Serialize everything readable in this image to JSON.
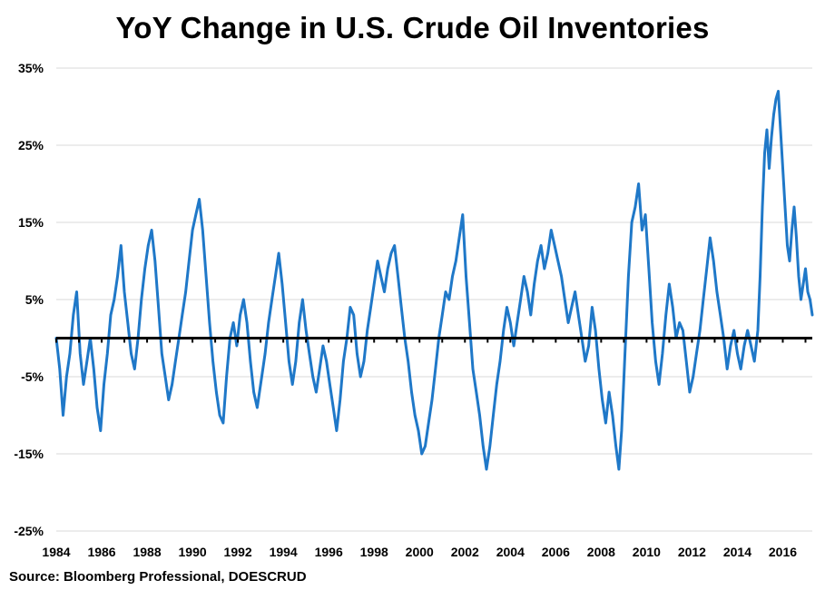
{
  "title": "YoY Change in U.S. Crude Oil Inventories",
  "source": "Source: Bloomberg Professional, DOESCRUD",
  "colors": {
    "series": "#1f78c8",
    "zero_line": "#000000",
    "grid": "#d9d9d9"
  },
  "chart_data": {
    "type": "line",
    "title": "YoY Change in U.S. Crude Oil Inventories",
    "xlabel": "",
    "ylabel": "",
    "xlim": [
      1984,
      2017.3
    ],
    "ylim": [
      -25,
      35
    ],
    "y_ticks": [
      35,
      25,
      15,
      5,
      -5,
      -15,
      -25
    ],
    "y_tick_labels": [
      "35%",
      "25%",
      "15%",
      "5%",
      "-5%",
      "-15%",
      "-25%"
    ],
    "x_ticks": [
      1984,
      1986,
      1988,
      1990,
      1992,
      1994,
      1996,
      1998,
      2000,
      2002,
      2004,
      2006,
      2008,
      2010,
      2012,
      2014,
      2016
    ],
    "x_tick_labels": [
      "1984",
      "1986",
      "1988",
      "1990",
      "1992",
      "1994",
      "1996",
      "1998",
      "2000",
      "2002",
      "2004",
      "2006",
      "2008",
      "2010",
      "2012",
      "2014",
      "2016"
    ],
    "grid": "horizontal",
    "zero_line": 0,
    "series": [
      {
        "name": "",
        "points": [
          [
            1984.0,
            0
          ],
          [
            1984.15,
            -4
          ],
          [
            1984.3,
            -10
          ],
          [
            1984.45,
            -5
          ],
          [
            1984.6,
            -2
          ],
          [
            1984.75,
            3
          ],
          [
            1984.9,
            6
          ],
          [
            1985.05,
            -2
          ],
          [
            1985.2,
            -6
          ],
          [
            1985.35,
            -3
          ],
          [
            1985.5,
            0
          ],
          [
            1985.65,
            -4
          ],
          [
            1985.8,
            -9
          ],
          [
            1985.95,
            -12
          ],
          [
            1986.1,
            -6
          ],
          [
            1986.25,
            -2
          ],
          [
            1986.4,
            3
          ],
          [
            1986.55,
            5
          ],
          [
            1986.7,
            8
          ],
          [
            1986.85,
            12
          ],
          [
            1987.0,
            6
          ],
          [
            1987.15,
            2
          ],
          [
            1987.3,
            -2
          ],
          [
            1987.45,
            -4
          ],
          [
            1987.6,
            0
          ],
          [
            1987.75,
            5
          ],
          [
            1987.9,
            9
          ],
          [
            1988.05,
            12
          ],
          [
            1988.2,
            14
          ],
          [
            1988.35,
            10
          ],
          [
            1988.5,
            4
          ],
          [
            1988.65,
            -2
          ],
          [
            1988.8,
            -5
          ],
          [
            1988.95,
            -8
          ],
          [
            1989.1,
            -6
          ],
          [
            1989.25,
            -3
          ],
          [
            1989.4,
            0
          ],
          [
            1989.55,
            3
          ],
          [
            1989.7,
            6
          ],
          [
            1989.85,
            10
          ],
          [
            1990.0,
            14
          ],
          [
            1990.15,
            16
          ],
          [
            1990.3,
            18
          ],
          [
            1990.45,
            14
          ],
          [
            1990.6,
            8
          ],
          [
            1990.75,
            2
          ],
          [
            1990.9,
            -3
          ],
          [
            1991.05,
            -7
          ],
          [
            1991.2,
            -10
          ],
          [
            1991.35,
            -11
          ],
          [
            1991.5,
            -5
          ],
          [
            1991.65,
            0
          ],
          [
            1991.8,
            2
          ],
          [
            1991.95,
            -1
          ],
          [
            1992.1,
            3
          ],
          [
            1992.25,
            5
          ],
          [
            1992.4,
            2
          ],
          [
            1992.55,
            -3
          ],
          [
            1992.7,
            -7
          ],
          [
            1992.85,
            -9
          ],
          [
            1993.05,
            -5
          ],
          [
            1993.2,
            -2
          ],
          [
            1993.35,
            2
          ],
          [
            1993.5,
            5
          ],
          [
            1993.65,
            8
          ],
          [
            1993.8,
            11
          ],
          [
            1993.95,
            7
          ],
          [
            1994.1,
            2
          ],
          [
            1994.25,
            -3
          ],
          [
            1994.4,
            -6
          ],
          [
            1994.55,
            -3
          ],
          [
            1994.7,
            2
          ],
          [
            1994.85,
            5
          ],
          [
            1995.0,
            1
          ],
          [
            1995.15,
            -2
          ],
          [
            1995.3,
            -5
          ],
          [
            1995.45,
            -7
          ],
          [
            1995.6,
            -4
          ],
          [
            1995.75,
            -1
          ],
          [
            1995.9,
            -3
          ],
          [
            1996.05,
            -6
          ],
          [
            1996.2,
            -9
          ],
          [
            1996.35,
            -12
          ],
          [
            1996.5,
            -8
          ],
          [
            1996.65,
            -3
          ],
          [
            1996.8,
            0
          ],
          [
            1996.95,
            4
          ],
          [
            1997.1,
            3
          ],
          [
            1997.25,
            -2
          ],
          [
            1997.4,
            -5
          ],
          [
            1997.55,
            -3
          ],
          [
            1997.7,
            1
          ],
          [
            1997.85,
            4
          ],
          [
            1998.0,
            7
          ],
          [
            1998.15,
            10
          ],
          [
            1998.3,
            8
          ],
          [
            1998.45,
            6
          ],
          [
            1998.6,
            9
          ],
          [
            1998.75,
            11
          ],
          [
            1998.9,
            12
          ],
          [
            1999.05,
            8
          ],
          [
            1999.2,
            4
          ],
          [
            1999.35,
            0
          ],
          [
            1999.5,
            -3
          ],
          [
            1999.65,
            -7
          ],
          [
            1999.8,
            -10
          ],
          [
            1999.95,
            -12
          ],
          [
            2000.1,
            -15
          ],
          [
            2000.25,
            -14
          ],
          [
            2000.4,
            -11
          ],
          [
            2000.55,
            -8
          ],
          [
            2000.7,
            -4
          ],
          [
            2000.85,
            0
          ],
          [
            2001.0,
            3
          ],
          [
            2001.15,
            6
          ],
          [
            2001.3,
            5
          ],
          [
            2001.45,
            8
          ],
          [
            2001.6,
            10
          ],
          [
            2001.75,
            13
          ],
          [
            2001.9,
            16
          ],
          [
            2002.05,
            8
          ],
          [
            2002.2,
            2
          ],
          [
            2002.35,
            -4
          ],
          [
            2002.5,
            -7
          ],
          [
            2002.65,
            -10
          ],
          [
            2002.8,
            -14
          ],
          [
            2002.95,
            -17
          ],
          [
            2003.1,
            -14
          ],
          [
            2003.25,
            -10
          ],
          [
            2003.4,
            -6
          ],
          [
            2003.55,
            -3
          ],
          [
            2003.7,
            1
          ],
          [
            2003.85,
            4
          ],
          [
            2004.0,
            2
          ],
          [
            2004.15,
            -1
          ],
          [
            2004.3,
            2
          ],
          [
            2004.45,
            5
          ],
          [
            2004.6,
            8
          ],
          [
            2004.75,
            6
          ],
          [
            2004.9,
            3
          ],
          [
            2005.05,
            7
          ],
          [
            2005.2,
            10
          ],
          [
            2005.35,
            12
          ],
          [
            2005.5,
            9
          ],
          [
            2005.65,
            11
          ],
          [
            2005.8,
            14
          ],
          [
            2005.95,
            12
          ],
          [
            2006.1,
            10
          ],
          [
            2006.25,
            8
          ],
          [
            2006.4,
            5
          ],
          [
            2006.55,
            2
          ],
          [
            2006.7,
            4
          ],
          [
            2006.85,
            6
          ],
          [
            2007.0,
            3
          ],
          [
            2007.15,
            0
          ],
          [
            2007.3,
            -3
          ],
          [
            2007.45,
            -1
          ],
          [
            2007.6,
            4
          ],
          [
            2007.75,
            1
          ],
          [
            2007.9,
            -4
          ],
          [
            2008.05,
            -8
          ],
          [
            2008.2,
            -11
          ],
          [
            2008.35,
            -7
          ],
          [
            2008.5,
            -10
          ],
          [
            2008.65,
            -14
          ],
          [
            2008.78,
            -17
          ],
          [
            2008.9,
            -12
          ],
          [
            2009.05,
            -2
          ],
          [
            2009.2,
            8
          ],
          [
            2009.35,
            15
          ],
          [
            2009.5,
            17
          ],
          [
            2009.65,
            20
          ],
          [
            2009.8,
            14
          ],
          [
            2009.95,
            16
          ],
          [
            2010.1,
            9
          ],
          [
            2010.25,
            2
          ],
          [
            2010.4,
            -3
          ],
          [
            2010.55,
            -6
          ],
          [
            2010.7,
            -2
          ],
          [
            2010.85,
            3
          ],
          [
            2011.0,
            7
          ],
          [
            2011.15,
            4
          ],
          [
            2011.3,
            0
          ],
          [
            2011.45,
            2
          ],
          [
            2011.6,
            1
          ],
          [
            2011.75,
            -3
          ],
          [
            2011.9,
            -7
          ],
          [
            2012.05,
            -5
          ],
          [
            2012.2,
            -2
          ],
          [
            2012.35,
            1
          ],
          [
            2012.5,
            5
          ],
          [
            2012.65,
            9
          ],
          [
            2012.8,
            13
          ],
          [
            2012.95,
            10
          ],
          [
            2013.1,
            6
          ],
          [
            2013.25,
            3
          ],
          [
            2013.4,
            0
          ],
          [
            2013.55,
            -4
          ],
          [
            2013.7,
            -1
          ],
          [
            2013.85,
            1
          ],
          [
            2014.0,
            -2
          ],
          [
            2014.15,
            -4
          ],
          [
            2014.3,
            -1
          ],
          [
            2014.45,
            1
          ],
          [
            2014.6,
            -1
          ],
          [
            2014.75,
            -3
          ],
          [
            2014.9,
            1
          ],
          [
            2015.0,
            8
          ],
          [
            2015.1,
            17
          ],
          [
            2015.2,
            24
          ],
          [
            2015.3,
            27
          ],
          [
            2015.4,
            22
          ],
          [
            2015.5,
            26
          ],
          [
            2015.6,
            29
          ],
          [
            2015.7,
            31
          ],
          [
            2015.8,
            32
          ],
          [
            2015.9,
            27
          ],
          [
            2016.0,
            22
          ],
          [
            2016.1,
            17
          ],
          [
            2016.2,
            12
          ],
          [
            2016.3,
            10
          ],
          [
            2016.4,
            14
          ],
          [
            2016.5,
            17
          ],
          [
            2016.6,
            13
          ],
          [
            2016.7,
            8
          ],
          [
            2016.8,
            5
          ],
          [
            2016.9,
            7
          ],
          [
            2017.0,
            9
          ],
          [
            2017.1,
            6
          ],
          [
            2017.2,
            5
          ],
          [
            2017.3,
            3
          ]
        ]
      }
    ]
  }
}
